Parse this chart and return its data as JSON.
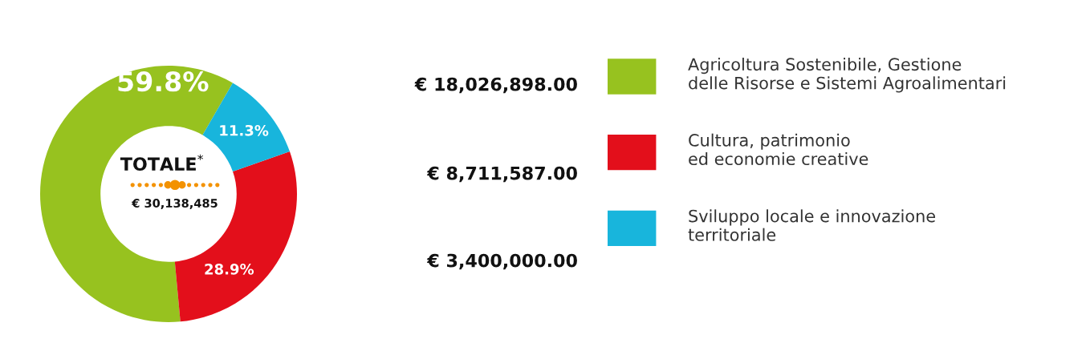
{
  "chart_data": {
    "type": "donut",
    "categories": [
      "Agricoltura Sostenibile, Gestione\ndelle Risorse e Sistemi Agroalimentari",
      "Cultura, patrimonio\ned economie creative",
      "Sviluppo locale e innovazione\nterritoriale"
    ],
    "values": [
      59.8,
      28.9,
      11.3
    ],
    "value_labels": [
      "59.8%",
      "28.9%",
      "11.3%"
    ],
    "colors": [
      "#97c21f",
      "#e30f1b",
      "#18b5dc"
    ],
    "legend": "right",
    "annotations": [
      "€ 18,026,898.00",
      "€ 8,711,587.00",
      "€ 3,400,000.00",
      "TOTALE$^{*}$",
      "€ 30,138,485"
    ]
  }
}
